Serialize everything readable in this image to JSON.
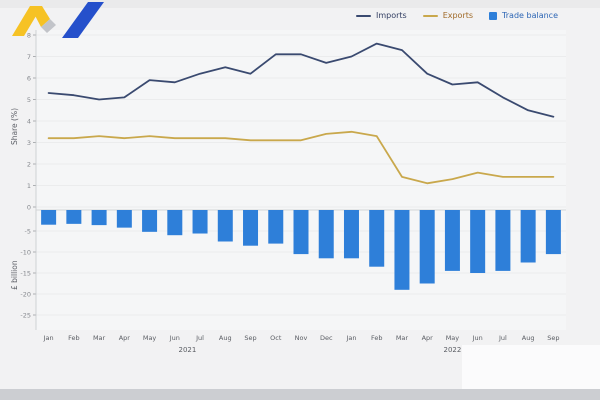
{
  "legend": {
    "items": [
      {
        "label": "Imports",
        "type": "line",
        "color": "#3a4a70",
        "text_color": "#333f63"
      },
      {
        "label": "Exports",
        "type": "line",
        "color": "#c9a84c",
        "text_color": "#a06a28"
      },
      {
        "label": "Trade balance",
        "type": "bar",
        "color": "#2e7fd9",
        "text_color": "#2d66b5"
      }
    ]
  },
  "axes": {
    "share_axis_label": "Share (%)",
    "billion_axis_label": "£ billion",
    "share_ticks": [
      8,
      7,
      6,
      5,
      4,
      3,
      2,
      1,
      0
    ],
    "billion_ticks": [
      -5,
      -10,
      -15,
      -20,
      -25
    ]
  },
  "chart_data": {
    "type": "combo",
    "categories": [
      "Jan",
      "Feb",
      "Mar",
      "Apr",
      "May",
      "Jun",
      "Jul",
      "Aug",
      "Sep",
      "Oct",
      "Nov",
      "Dec",
      "Jan",
      "Feb",
      "Mar",
      "Apr",
      "May",
      "Jun",
      "Jul",
      "Aug",
      "Sep"
    ],
    "years": [
      {
        "label": "2021",
        "start": 0,
        "end": 11
      },
      {
        "label": "2022",
        "start": 12,
        "end": 20
      }
    ],
    "share_axis_range": [
      0,
      8
    ],
    "billion_axis_range": [
      -27,
      0
    ],
    "grid": "horizontal-faint",
    "legend_position": "top-right",
    "series": [
      {
        "name": "Imports",
        "type": "line",
        "axis": "share_pct",
        "color": "#3a4a70",
        "values": [
          5.3,
          5.2,
          5.0,
          5.1,
          5.9,
          5.8,
          6.2,
          6.5,
          6.2,
          7.1,
          7.1,
          6.7,
          7.0,
          7.6,
          7.3,
          6.2,
          5.7,
          5.8,
          5.1,
          4.5,
          4.2
        ]
      },
      {
        "name": "Exports",
        "type": "line",
        "axis": "share_pct",
        "color": "#c9a84c",
        "values": [
          3.2,
          3.2,
          3.3,
          3.2,
          3.3,
          3.2,
          3.2,
          3.2,
          3.1,
          3.1,
          3.1,
          3.4,
          3.5,
          3.3,
          1.4,
          1.1,
          1.3,
          1.6,
          1.4,
          1.4,
          1.4
        ]
      },
      {
        "name": "Trade balance",
        "type": "bar",
        "axis": "gbp_billion",
        "color": "#2e7fd9",
        "values": [
          -3.5,
          -3.3,
          -3.6,
          -4.2,
          -5.2,
          -6.0,
          -5.6,
          -7.5,
          -8.5,
          -8.0,
          -10.5,
          -11.5,
          -11.5,
          -13.5,
          -19.0,
          -17.5,
          -14.5,
          -15.0,
          -14.5,
          -12.5,
          -10.5
        ]
      }
    ]
  },
  "logo": {
    "name": "rising-chart-arrow-logo",
    "colors": {
      "yellow": "#f6c224",
      "grey": "#c2c4c9",
      "blue": "#2550cb"
    }
  }
}
